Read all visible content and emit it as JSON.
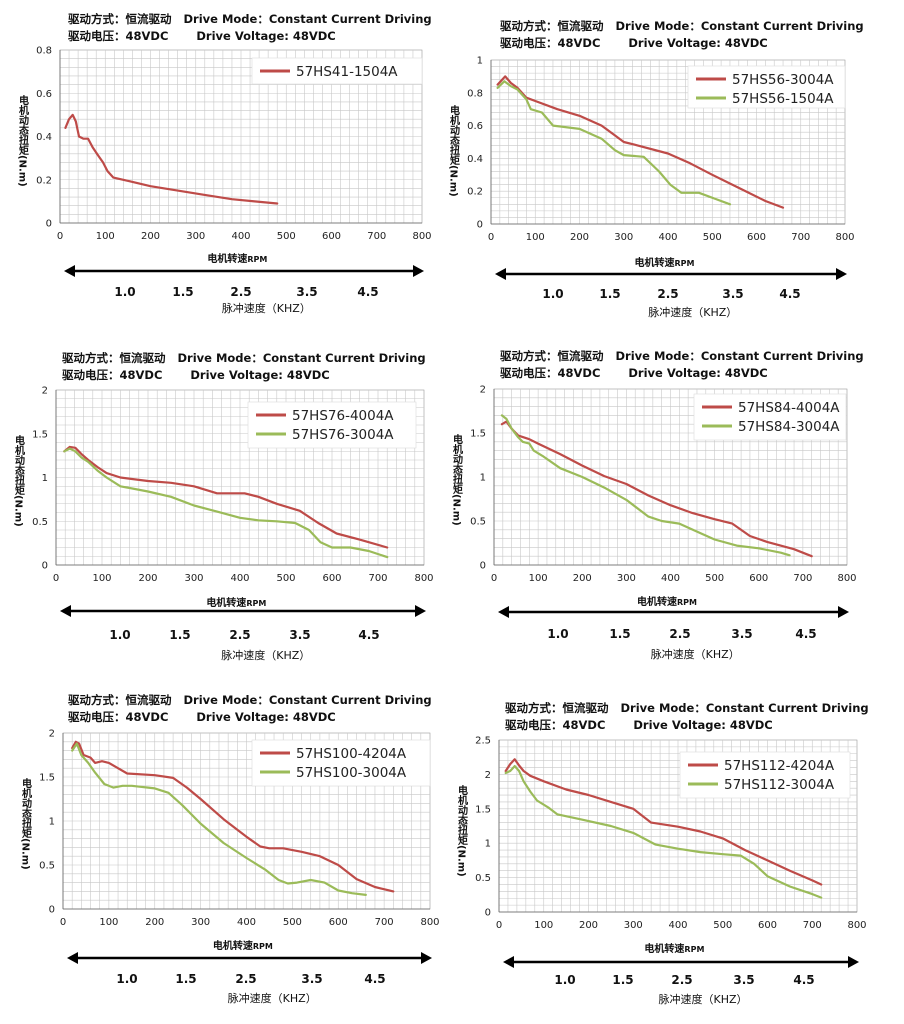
{
  "header": {
    "mode_cn_label": "驱动方式：",
    "mode_cn_value": "恒流驱动",
    "mode_en": "Drive Mode：",
    "mode_en_value": "Constant Current Driving",
    "volt_cn_label": "驱动电压：",
    "volt_value": "48VDC",
    "volt_en": "Drive Voltage: 48VDC"
  },
  "labels": {
    "ylabel": "电机动态扭矩(N.m)",
    "xlabel_cn": "电机转速",
    "xlabel_unit": "RPM",
    "khz_label": "脉冲速度（KHZ）",
    "khz_ticks": [
      "1.0",
      "1.5",
      "2.5",
      "3.5",
      "4.5"
    ]
  },
  "colors": {
    "red": "#be4b48",
    "green": "#9bbb59",
    "arrow": "#000000"
  },
  "chart_data": [
    {
      "type": "line",
      "xlabel": "电机转速RPM",
      "ylabel": "电机动态扭矩(N.m)",
      "xlim": [
        0,
        800
      ],
      "ylim": [
        0,
        0.8
      ],
      "yticks": [
        "0",
        "0.2",
        "0.4",
        "0.6",
        "0.8"
      ],
      "xticks": [
        "0",
        "100",
        "200",
        "300",
        "400",
        "500",
        "600",
        "700",
        "800"
      ],
      "series": [
        {
          "name": "57HS41-1504A",
          "color": "red",
          "points": [
            [
              12,
              0.44
            ],
            [
              20,
              0.48
            ],
            [
              28,
              0.5
            ],
            [
              35,
              0.47
            ],
            [
              42,
              0.4
            ],
            [
              52,
              0.39
            ],
            [
              62,
              0.39
            ],
            [
              72,
              0.35
            ],
            [
              85,
              0.31
            ],
            [
              95,
              0.28
            ],
            [
              105,
              0.24
            ],
            [
              118,
              0.21
            ],
            [
              140,
              0.2
            ],
            [
              200,
              0.17
            ],
            [
              260,
              0.15
            ],
            [
              320,
              0.13
            ],
            [
              380,
              0.11
            ],
            [
              430,
              0.1
            ],
            [
              480,
              0.09
            ]
          ]
        }
      ]
    },
    {
      "type": "line",
      "xlabel": "电机转速RPM",
      "ylabel": "电机动态扭矩(N.m)",
      "xlim": [
        0,
        800
      ],
      "ylim": [
        0,
        1
      ],
      "yticks": [
        "0",
        "0.2",
        "0.4",
        "0.6",
        "0.8",
        "1"
      ],
      "xticks": [
        "0",
        "100",
        "200",
        "300",
        "400",
        "500",
        "600",
        "700",
        "800"
      ],
      "series": [
        {
          "name": "57HS56-3004A",
          "color": "red",
          "points": [
            [
              15,
              0.85
            ],
            [
              25,
              0.88
            ],
            [
              32,
              0.9
            ],
            [
              45,
              0.86
            ],
            [
              60,
              0.83
            ],
            [
              80,
              0.77
            ],
            [
              100,
              0.75
            ],
            [
              150,
              0.7
            ],
            [
              200,
              0.66
            ],
            [
              250,
              0.6
            ],
            [
              280,
              0.54
            ],
            [
              300,
              0.5
            ],
            [
              330,
              0.48
            ],
            [
              400,
              0.43
            ],
            [
              450,
              0.37
            ],
            [
              500,
              0.3
            ],
            [
              560,
              0.22
            ],
            [
              620,
              0.14
            ],
            [
              660,
              0.1
            ]
          ]
        },
        {
          "name": "57HS56-1504A",
          "color": "green",
          "points": [
            [
              15,
              0.83
            ],
            [
              30,
              0.87
            ],
            [
              45,
              0.84
            ],
            [
              60,
              0.82
            ],
            [
              80,
              0.76
            ],
            [
              90,
              0.7
            ],
            [
              115,
              0.68
            ],
            [
              140,
              0.6
            ],
            [
              200,
              0.58
            ],
            [
              250,
              0.52
            ],
            [
              280,
              0.45
            ],
            [
              300,
              0.42
            ],
            [
              345,
              0.41
            ],
            [
              380,
              0.32
            ],
            [
              405,
              0.24
            ],
            [
              430,
              0.19
            ],
            [
              470,
              0.19
            ],
            [
              510,
              0.15
            ],
            [
              540,
              0.12
            ]
          ]
        }
      ]
    },
    {
      "type": "line",
      "xlabel": "电机转速RPM",
      "ylabel": "电机动态扭矩(N.m)",
      "xlim": [
        0,
        800
      ],
      "ylim": [
        0,
        2
      ],
      "yticks": [
        "0",
        "0.5",
        "1",
        "1.5",
        "2"
      ],
      "xticks": [
        "0",
        "100",
        "200",
        "300",
        "400",
        "500",
        "600",
        "700",
        "800"
      ],
      "series": [
        {
          "name": "57HS76-4004A",
          "color": "red",
          "points": [
            [
              18,
              1.3
            ],
            [
              30,
              1.35
            ],
            [
              42,
              1.34
            ],
            [
              55,
              1.27
            ],
            [
              70,
              1.2
            ],
            [
              90,
              1.12
            ],
            [
              110,
              1.05
            ],
            [
              140,
              1.0
            ],
            [
              200,
              0.96
            ],
            [
              250,
              0.94
            ],
            [
              300,
              0.9
            ],
            [
              350,
              0.82
            ],
            [
              410,
              0.82
            ],
            [
              440,
              0.78
            ],
            [
              480,
              0.7
            ],
            [
              530,
              0.62
            ],
            [
              570,
              0.48
            ],
            [
              610,
              0.36
            ],
            [
              660,
              0.29
            ],
            [
              720,
              0.2
            ]
          ]
        },
        {
          "name": "57HS76-3004A",
          "color": "green",
          "points": [
            [
              18,
              1.3
            ],
            [
              30,
              1.33
            ],
            [
              42,
              1.3
            ],
            [
              55,
              1.23
            ],
            [
              70,
              1.18
            ],
            [
              90,
              1.08
            ],
            [
              110,
              1.0
            ],
            [
              140,
              0.9
            ],
            [
              200,
              0.84
            ],
            [
              250,
              0.78
            ],
            [
              300,
              0.68
            ],
            [
              350,
              0.61
            ],
            [
              400,
              0.54
            ],
            [
              440,
              0.51
            ],
            [
              480,
              0.5
            ],
            [
              520,
              0.48
            ],
            [
              550,
              0.4
            ],
            [
              575,
              0.26
            ],
            [
              600,
              0.2
            ],
            [
              640,
              0.2
            ],
            [
              680,
              0.16
            ],
            [
              720,
              0.09
            ]
          ]
        }
      ]
    },
    {
      "type": "line",
      "xlabel": "电机转速RPM",
      "ylabel": "电机动态扭矩(N.m)",
      "xlim": [
        0,
        800
      ],
      "ylim": [
        0,
        2
      ],
      "yticks": [
        "0",
        "0.5",
        "1",
        "1.5",
        "2"
      ],
      "xticks": [
        "0",
        "100",
        "200",
        "300",
        "400",
        "500",
        "600",
        "700",
        "800"
      ],
      "series": [
        {
          "name": "57HS84-4004A",
          "color": "red",
          "points": [
            [
              18,
              1.6
            ],
            [
              28,
              1.63
            ],
            [
              40,
              1.55
            ],
            [
              55,
              1.47
            ],
            [
              80,
              1.43
            ],
            [
              100,
              1.38
            ],
            [
              150,
              1.26
            ],
            [
              200,
              1.13
            ],
            [
              250,
              1.01
            ],
            [
              300,
              0.92
            ],
            [
              350,
              0.79
            ],
            [
              400,
              0.68
            ],
            [
              450,
              0.59
            ],
            [
              500,
              0.52
            ],
            [
              540,
              0.47
            ],
            [
              580,
              0.33
            ],
            [
              620,
              0.26
            ],
            [
              680,
              0.18
            ],
            [
              720,
              0.1
            ]
          ]
        },
        {
          "name": "57HS84-3004A",
          "color": "green",
          "points": [
            [
              18,
              1.7
            ],
            [
              28,
              1.66
            ],
            [
              40,
              1.55
            ],
            [
              55,
              1.45
            ],
            [
              65,
              1.4
            ],
            [
              80,
              1.38
            ],
            [
              90,
              1.3
            ],
            [
              110,
              1.24
            ],
            [
              150,
              1.1
            ],
            [
              200,
              1.0
            ],
            [
              250,
              0.88
            ],
            [
              300,
              0.74
            ],
            [
              350,
              0.55
            ],
            [
              380,
              0.5
            ],
            [
              420,
              0.47
            ],
            [
              460,
              0.38
            ],
            [
              500,
              0.29
            ],
            [
              550,
              0.22
            ],
            [
              600,
              0.19
            ],
            [
              650,
              0.14
            ],
            [
              670,
              0.11
            ]
          ]
        }
      ]
    },
    {
      "type": "line",
      "xlabel": "电机转速RPM",
      "ylabel": "电机动态扭矩(N.m)",
      "xlim": [
        0,
        800
      ],
      "ylim": [
        0,
        2
      ],
      "yticks": [
        "0",
        "0.5",
        "1",
        "1.5",
        "2"
      ],
      "xticks": [
        "0",
        "100",
        "200",
        "300",
        "400",
        "500",
        "600",
        "700",
        "800"
      ],
      "series": [
        {
          "name": "57HS100-4204A",
          "color": "red",
          "points": [
            [
              20,
              1.83
            ],
            [
              28,
              1.9
            ],
            [
              35,
              1.88
            ],
            [
              45,
              1.75
            ],
            [
              60,
              1.72
            ],
            [
              70,
              1.66
            ],
            [
              85,
              1.68
            ],
            [
              100,
              1.66
            ],
            [
              120,
              1.6
            ],
            [
              140,
              1.54
            ],
            [
              200,
              1.52
            ],
            [
              240,
              1.49
            ],
            [
              270,
              1.38
            ],
            [
              300,
              1.25
            ],
            [
              350,
              1.02
            ],
            [
              400,
              0.82
            ],
            [
              430,
              0.71
            ],
            [
              450,
              0.69
            ],
            [
              480,
              0.69
            ],
            [
              520,
              0.65
            ],
            [
              560,
              0.6
            ],
            [
              600,
              0.5
            ],
            [
              640,
              0.34
            ],
            [
              680,
              0.25
            ],
            [
              720,
              0.2
            ]
          ]
        },
        {
          "name": "57HS100-3004A",
          "color": "green",
          "points": [
            [
              20,
              1.8
            ],
            [
              30,
              1.88
            ],
            [
              40,
              1.75
            ],
            [
              55,
              1.66
            ],
            [
              70,
              1.55
            ],
            [
              90,
              1.42
            ],
            [
              110,
              1.38
            ],
            [
              130,
              1.4
            ],
            [
              150,
              1.4
            ],
            [
              200,
              1.37
            ],
            [
              230,
              1.32
            ],
            [
              260,
              1.18
            ],
            [
              300,
              0.97
            ],
            [
              350,
              0.75
            ],
            [
              400,
              0.58
            ],
            [
              440,
              0.45
            ],
            [
              470,
              0.33
            ],
            [
              490,
              0.29
            ],
            [
              510,
              0.3
            ],
            [
              540,
              0.33
            ],
            [
              570,
              0.3
            ],
            [
              600,
              0.21
            ],
            [
              630,
              0.18
            ],
            [
              660,
              0.16
            ]
          ]
        }
      ]
    },
    {
      "type": "line",
      "xlabel": "电机转速RPM",
      "ylabel": "电机动态扭矩(N.m)",
      "xlim": [
        0,
        800
      ],
      "ylim": [
        0,
        2.5
      ],
      "yticks": [
        "0",
        "0.5",
        "1",
        "1.5",
        "2",
        "2.5"
      ],
      "xticks": [
        "0",
        "100",
        "200",
        "300",
        "400",
        "500",
        "600",
        "700",
        "800"
      ],
      "series": [
        {
          "name": "57HS112-4204A",
          "color": "red",
          "points": [
            [
              15,
              2.05
            ],
            [
              25,
              2.15
            ],
            [
              35,
              2.22
            ],
            [
              45,
              2.13
            ],
            [
              55,
              2.05
            ],
            [
              70,
              1.98
            ],
            [
              100,
              1.9
            ],
            [
              150,
              1.78
            ],
            [
              200,
              1.7
            ],
            [
              250,
              1.6
            ],
            [
              300,
              1.5
            ],
            [
              340,
              1.3
            ],
            [
              400,
              1.24
            ],
            [
              450,
              1.17
            ],
            [
              500,
              1.07
            ],
            [
              550,
              0.9
            ],
            [
              600,
              0.75
            ],
            [
              650,
              0.6
            ],
            [
              700,
              0.46
            ],
            [
              720,
              0.4
            ]
          ]
        },
        {
          "name": "57HS112-3004A",
          "color": "green",
          "points": [
            [
              15,
              2.02
            ],
            [
              25,
              2.05
            ],
            [
              35,
              2.12
            ],
            [
              45,
              2.05
            ],
            [
              55,
              1.9
            ],
            [
              70,
              1.75
            ],
            [
              85,
              1.62
            ],
            [
              110,
              1.52
            ],
            [
              130,
              1.42
            ],
            [
              180,
              1.35
            ],
            [
              250,
              1.25
            ],
            [
              300,
              1.15
            ],
            [
              350,
              0.98
            ],
            [
              400,
              0.92
            ],
            [
              450,
              0.87
            ],
            [
              500,
              0.84
            ],
            [
              540,
              0.82
            ],
            [
              570,
              0.7
            ],
            [
              600,
              0.52
            ],
            [
              650,
              0.37
            ],
            [
              700,
              0.26
            ],
            [
              720,
              0.21
            ]
          ]
        }
      ]
    }
  ]
}
